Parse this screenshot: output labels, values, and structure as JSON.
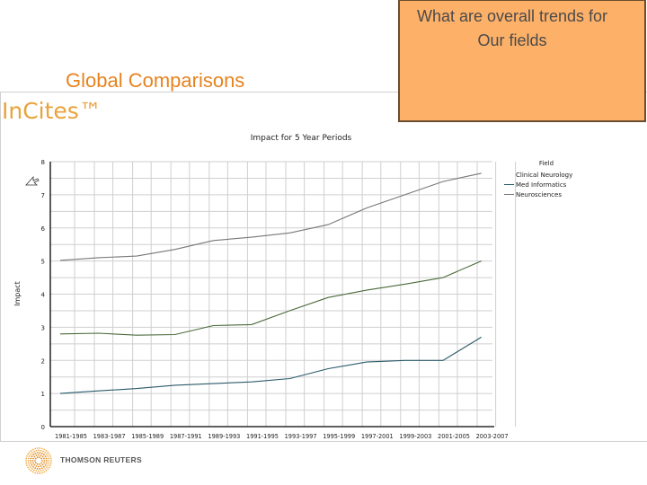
{
  "slide": {
    "title": "Global Comparisons",
    "callout_line1": "What are overall trends for",
    "callout_line2": "Our fields"
  },
  "app": {
    "brand": "InCites™",
    "footer_brand": "THOMSON REUTERS"
  },
  "chart_data": {
    "type": "line",
    "title": "Impact for 5 Year Periods",
    "xlabel": "",
    "ylabel": "Impact",
    "ylim": [
      0,
      8
    ],
    "yticks": [
      0,
      1,
      2,
      3,
      4,
      5,
      6,
      7,
      8
    ],
    "grid": true,
    "legend_position": "right",
    "legend_title": "Field",
    "categories": [
      "1981-1985",
      "1983-1987",
      "1985-1989",
      "1987-1991",
      "1989-1993",
      "1991-1995",
      "1993-1997",
      "1995-1999",
      "1997-2001",
      "1999-2003",
      "2001-2005",
      "2003-2007"
    ],
    "series": [
      {
        "name": "Clinical Neurology",
        "color": "#4a6a3a",
        "values": [
          2.8,
          2.82,
          2.76,
          2.78,
          3.05,
          3.08,
          3.5,
          3.9,
          4.12,
          4.3,
          4.5,
          5.0
        ]
      },
      {
        "name": "Med Informatics",
        "color": "#2a5a6a",
        "values": [
          1.0,
          1.08,
          1.15,
          1.25,
          1.3,
          1.35,
          1.45,
          1.75,
          1.95,
          2.0,
          2.0,
          2.7
        ]
      },
      {
        "name": "Neurosciences",
        "color": "#777777",
        "values": [
          5.02,
          5.1,
          5.15,
          5.35,
          5.62,
          5.72,
          5.85,
          6.1,
          6.6,
          7.0,
          7.4,
          7.65
        ]
      }
    ]
  }
}
